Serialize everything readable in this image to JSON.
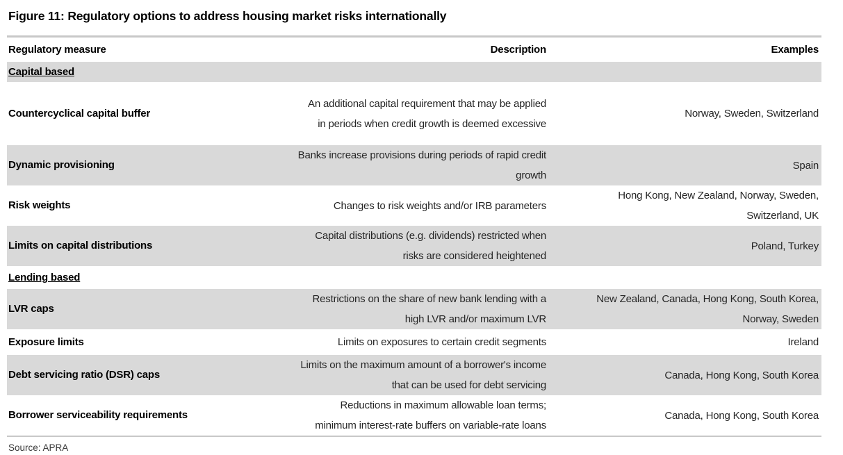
{
  "title": "Figure 11: Regulatory options to address housing market risks internationally",
  "source": "Source: APRA",
  "colors": {
    "row_shade": "#d9d9d9",
    "border_line": "#c8c8c8",
    "text": "#262626"
  },
  "table": {
    "headers": [
      "Regulatory measure",
      "Description",
      "Examples"
    ],
    "rows": [
      {
        "type": "section",
        "measure": "Capital based"
      },
      {
        "type": "data",
        "measure": "Countercyclical capital buffer",
        "description": "An additional capital requirement that may be applied\nin periods when credit growth is deemed excessive",
        "examples": "Norway, Sweden, Switzerland"
      },
      {
        "type": "data",
        "measure": "Dynamic provisioning",
        "description": "Banks increase provisions during periods of rapid credit\ngrowth",
        "examples": "Spain"
      },
      {
        "type": "data",
        "measure": "Risk weights",
        "description": "Changes to risk weights and/or IRB parameters",
        "examples": "Hong Kong, New Zealand, Norway, Sweden,\nSwitzerland, UK"
      },
      {
        "type": "data",
        "measure": "Limits on capital distributions",
        "description": "Capital distributions (e.g. dividends) restricted when\nrisks are considered heightened",
        "examples": "Poland, Turkey"
      },
      {
        "type": "section",
        "measure": "Lending based"
      },
      {
        "type": "data",
        "measure": "LVR caps",
        "description": "Restrictions on the share of new bank lending with a\nhigh LVR and/or maximum LVR",
        "examples": "New Zealand, Canada, Hong Kong, South Korea,\nNorway, Sweden"
      },
      {
        "type": "data",
        "measure": "Exposure limits",
        "description": "Limits on exposures to certain credit segments",
        "examples": "Ireland"
      },
      {
        "type": "data",
        "measure": "Debt servicing ratio (DSR) caps",
        "description": "Limits on the maximum amount of a borrower's income\nthat can be used for debt servicing",
        "examples": "Canada, Hong Kong, South Korea"
      },
      {
        "type": "data",
        "measure": "Borrower serviceability requirements",
        "description": "Reductions in maximum allowable loan terms;\nminimum interest-rate buffers on variable-rate loans",
        "examples": "Canada, Hong Kong, South Korea"
      }
    ]
  }
}
